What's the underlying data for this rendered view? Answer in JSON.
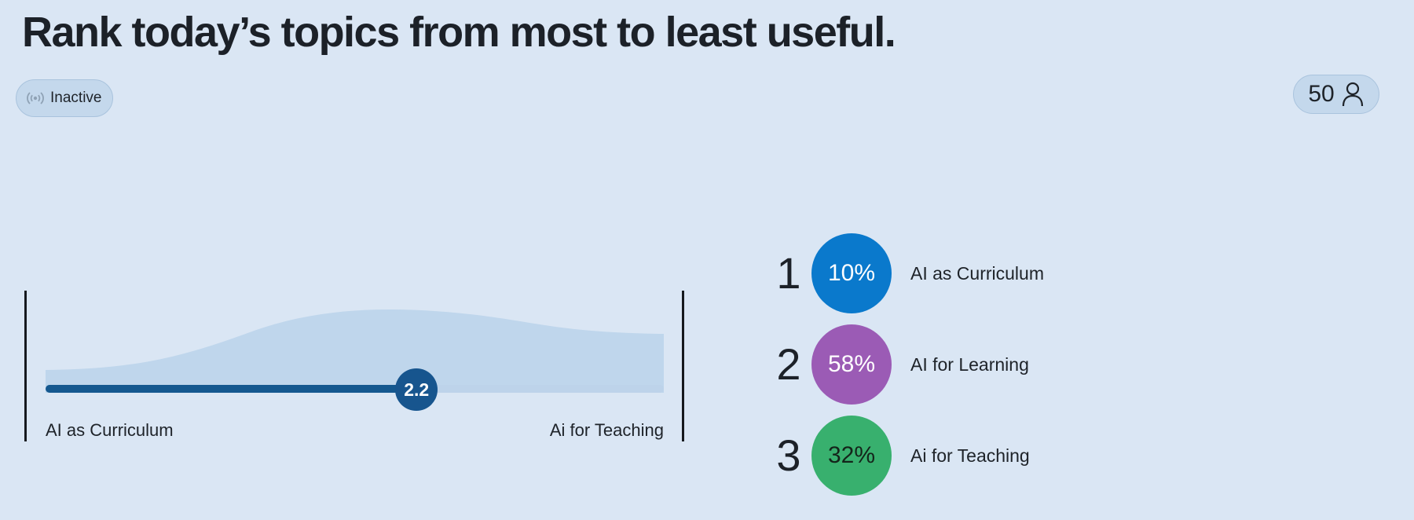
{
  "title": "Rank today’s topics from most to least useful.",
  "status": {
    "label": "Inactive",
    "icon": "broadcast-icon"
  },
  "participants": {
    "count": "50",
    "icon": "person-icon"
  },
  "slider": {
    "value": 2.2,
    "value_label": "2.2",
    "min": 1,
    "max": 3,
    "left_label": "AI as Curriculum",
    "right_label": "Ai for Teaching"
  },
  "ranking": [
    {
      "rank": "1",
      "percent": "10%",
      "label": "AI as Curriculum",
      "color": "#0a79cc",
      "text_color": "#ffffff"
    },
    {
      "rank": "2",
      "percent": "58%",
      "label": "AI for Learning",
      "color": "#9b5bb5",
      "text_color": "#ffffff"
    },
    {
      "rank": "3",
      "percent": "32%",
      "label": "Ai for Teaching",
      "color": "#38b06e",
      "text_color": "#14241a"
    }
  ]
}
